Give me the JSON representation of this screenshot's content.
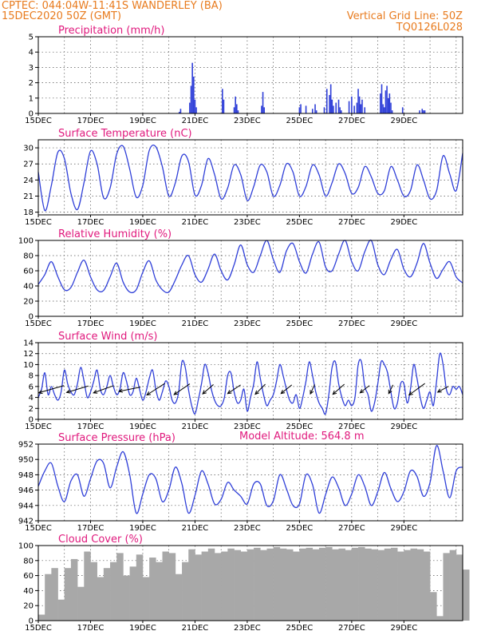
{
  "header": {
    "line1_left": "CPTEC:  044:04W-11:41S  WANDERLEY (BA)",
    "line2_left": "15DEC2020 50Z (GMT)",
    "line1_right": "Vertical Grid Line: 50Z",
    "line2_right": "TQ0126L028"
  },
  "model_altitude": "Model Altitude: 564.8 m",
  "colors": {
    "header": "#e87b1e",
    "title": "#e0197d",
    "series": "#2f3fd8",
    "cloud": "#a8a8a8"
  },
  "chart_data": [
    {
      "type": "bar",
      "title": "Precipitation (mm/h)",
      "x_tick_labels": [
        "15DEC",
        "17DEC",
        "19DEC",
        "21DEC",
        "23DEC",
        "25DEC",
        "27DEC",
        "29DEC"
      ],
      "y_tick_labels": [
        "0",
        "1",
        "2",
        "3",
        "4",
        "5"
      ],
      "ylim": [
        0,
        5
      ],
      "x_unit": "day offset from 15DEC",
      "x": [
        5.4,
        5.45,
        5.8,
        5.85,
        5.9,
        5.95,
        6.0,
        6.05,
        7.05,
        7.1,
        7.5,
        7.55,
        7.6,
        7.65,
        8.55,
        8.6,
        8.65,
        10.0,
        10.05,
        10.25,
        10.5,
        10.6,
        10.65,
        10.95,
        11.05,
        11.15,
        11.2,
        11.25,
        11.3,
        11.4,
        11.5,
        11.55,
        11.6,
        11.9,
        12.0,
        12.1,
        12.2,
        12.25,
        12.3,
        12.35,
        12.4,
        12.5,
        13.1,
        13.15,
        13.2,
        13.25,
        13.3,
        13.35,
        13.4,
        13.45,
        13.5,
        13.55,
        13.95,
        14.6,
        14.7,
        14.75,
        14.8
      ],
      "values": [
        0.1,
        0.3,
        0.7,
        1.8,
        3.3,
        2.4,
        0.9,
        0.4,
        1.6,
        0.9,
        0.4,
        1.1,
        0.6,
        0.2,
        0.5,
        1.4,
        0.4,
        0.4,
        0.6,
        0.5,
        0.3,
        0.6,
        0.2,
        0.4,
        1.6,
        1.2,
        1.9,
        0.9,
        0.5,
        0.7,
        0.9,
        0.4,
        0.2,
        0.8,
        1.1,
        0.5,
        0.7,
        1.6,
        1.1,
        0.6,
        0.9,
        0.4,
        1.3,
        1.9,
        0.6,
        0.4,
        1.5,
        1.8,
        1.0,
        1.3,
        0.7,
        0.2,
        0.4,
        0.2,
        0.3,
        0.2,
        0.2
      ],
      "grid": true
    },
    {
      "type": "line",
      "title": "Surface Temperature (nC)",
      "x_tick_labels": [
        "15DEC",
        "17DEC",
        "19DEC",
        "21DEC",
        "23DEC",
        "25DEC",
        "27DEC",
        "29DEC"
      ],
      "y_tick_labels": [
        "18",
        "21",
        "24",
        "27",
        "30"
      ],
      "ylim": [
        17.5,
        31.5
      ],
      "x_unit": "day offset from 15DEC",
      "x": [
        0.0,
        0.25,
        0.5,
        0.75,
        1.0,
        1.25,
        1.5,
        1.75,
        2.0,
        2.25,
        2.5,
        2.75,
        3.0,
        3.25,
        3.5,
        3.75,
        4.0,
        4.25,
        4.5,
        4.75,
        5.0,
        5.25,
        5.5,
        5.75,
        6.0,
        6.25,
        6.5,
        6.75,
        7.0,
        7.25,
        7.5,
        7.75,
        8.0,
        8.25,
        8.5,
        8.75,
        9.0,
        9.25,
        9.5,
        9.75,
        10.0,
        10.25,
        10.5,
        10.75,
        11.0,
        11.25,
        11.5,
        11.75,
        12.0,
        12.25,
        12.5,
        12.75,
        13.0,
        13.25,
        13.5,
        13.75,
        14.0,
        14.25,
        14.5,
        14.75,
        15.0,
        15.25,
        15.5,
        15.75,
        16.0,
        16.25
      ],
      "y": [
        25.5,
        18.3,
        23.0,
        29.2,
        28.0,
        21.5,
        18.5,
        23.5,
        29.4,
        27.0,
        20.7,
        22.5,
        28.8,
        30.3,
        26.0,
        20.8,
        23.0,
        29.5,
        30.2,
        26.5,
        21.0,
        23.5,
        28.5,
        27.5,
        21.2,
        23.0,
        28.0,
        25.0,
        20.5,
        22.5,
        26.8,
        25.0,
        20.2,
        22.8,
        26.8,
        25.5,
        21.0,
        23.0,
        27.0,
        25.5,
        21.0,
        22.8,
        26.8,
        25.0,
        21.0,
        23.5,
        27.0,
        25.2,
        21.5,
        22.6,
        26.5,
        24.6,
        21.5,
        22.0,
        26.5,
        24.0,
        21.0,
        22.0,
        26.8,
        24.0,
        20.5,
        22.0,
        28.5,
        25.2,
        22.0,
        29.0
      ],
      "grid": true
    },
    {
      "type": "line",
      "title": "Relative Humidity (%)",
      "x_tick_labels": [
        "15DEC",
        "17DEC",
        "19DEC",
        "21DEC",
        "23DEC",
        "25DEC",
        "27DEC",
        "29DEC"
      ],
      "y_tick_labels": [
        "0",
        "20",
        "40",
        "60",
        "80",
        "100"
      ],
      "ylim": [
        0,
        100
      ],
      "x_unit": "day offset from 15DEC",
      "x": [
        0.0,
        0.25,
        0.5,
        0.75,
        1.0,
        1.25,
        1.5,
        1.75,
        2.0,
        2.25,
        2.5,
        2.75,
        3.0,
        3.25,
        3.5,
        3.75,
        4.0,
        4.25,
        4.5,
        4.75,
        5.0,
        5.25,
        5.5,
        5.75,
        6.0,
        6.25,
        6.5,
        6.75,
        7.0,
        7.25,
        7.5,
        7.75,
        8.0,
        8.25,
        8.5,
        8.75,
        9.0,
        9.25,
        9.5,
        9.75,
        10.0,
        10.25,
        10.5,
        10.75,
        11.0,
        11.25,
        11.5,
        11.75,
        12.0,
        12.25,
        12.5,
        12.75,
        13.0,
        13.25,
        13.5,
        13.75,
        14.0,
        14.25,
        14.5,
        14.75,
        15.0,
        15.25,
        15.5,
        15.75,
        16.0,
        16.25
      ],
      "y": [
        42,
        55,
        72,
        52,
        35,
        38,
        58,
        74,
        52,
        35,
        34,
        52,
        70,
        45,
        32,
        35,
        58,
        73,
        48,
        35,
        32,
        48,
        68,
        80,
        55,
        45,
        62,
        82,
        60,
        48,
        68,
        94,
        68,
        58,
        80,
        100,
        75,
        58,
        86,
        96,
        72,
        57,
        82,
        98,
        65,
        60,
        82,
        100,
        72,
        60,
        85,
        100,
        68,
        55,
        75,
        88,
        62,
        52,
        70,
        96,
        70,
        50,
        62,
        72,
        52,
        44
      ]
    },
    {
      "type": "line",
      "title": "Surface Wind (m/s)",
      "x_tick_labels": [
        "15DEC",
        "17DEC",
        "19DEC",
        "21DEC",
        "23DEC",
        "25DEC",
        "27DEC",
        "29DEC"
      ],
      "y_tick_labels": [
        "0",
        "2",
        "4",
        "6",
        "8",
        "10",
        "12",
        "14"
      ],
      "ylim": [
        0,
        14
      ],
      "x_unit": "day offset from 15DEC",
      "x": [
        0.0,
        0.125,
        0.25,
        0.375,
        0.5,
        0.625,
        0.75,
        0.875,
        1.0,
        1.125,
        1.25,
        1.375,
        1.5,
        1.625,
        1.75,
        1.875,
        2.0,
        2.125,
        2.25,
        2.375,
        2.5,
        2.625,
        2.75,
        2.875,
        3.0,
        3.125,
        3.25,
        3.375,
        3.5,
        3.625,
        3.75,
        3.875,
        4.0,
        4.125,
        4.25,
        4.375,
        4.5,
        4.625,
        4.75,
        4.875,
        5.0,
        5.125,
        5.25,
        5.375,
        5.5,
        5.625,
        5.75,
        5.875,
        6.0,
        6.125,
        6.25,
        6.375,
        6.5,
        6.625,
        6.75,
        6.875,
        7.0,
        7.125,
        7.25,
        7.375,
        7.5,
        7.625,
        7.75,
        7.875,
        8.0,
        8.125,
        8.25,
        8.375,
        8.5,
        8.625,
        8.75,
        8.875,
        9.0,
        9.125,
        9.25,
        9.375,
        9.5,
        9.625,
        9.75,
        9.875,
        10.0,
        10.125,
        10.25,
        10.375,
        10.5,
        10.625,
        10.75,
        10.875,
        11.0,
        11.125,
        11.25,
        11.375,
        11.5,
        11.625,
        11.75,
        11.875,
        12.0,
        12.125,
        12.25,
        12.375,
        12.5,
        12.625,
        12.75,
        12.875,
        13.0,
        13.125,
        13.25,
        13.375,
        13.5,
        13.625,
        13.75,
        13.875,
        14.0,
        14.125,
        14.25,
        14.375,
        14.5,
        14.625,
        14.75,
        14.875,
        15.0,
        15.125,
        15.25,
        15.375,
        15.5,
        15.625,
        15.75,
        15.875,
        16.0,
        16.125,
        16.25
      ],
      "y": [
        4.0,
        5.5,
        8.5,
        4.5,
        6.0,
        4.5,
        3.5,
        5.0,
        9.0,
        6.5,
        5.0,
        4.5,
        6.5,
        9.5,
        7.0,
        4.0,
        5.0,
        7.0,
        9.0,
        5.5,
        4.5,
        6.0,
        8.0,
        6.0,
        4.5,
        5.5,
        8.5,
        7.0,
        4.5,
        5.0,
        7.5,
        5.5,
        3.5,
        5.0,
        7.5,
        9.0,
        5.5,
        3.5,
        5.0,
        7.0,
        6.0,
        3.5,
        3.0,
        5.0,
        10.5,
        9.5,
        5.5,
        2.5,
        1.0,
        3.5,
        6.5,
        10.0,
        8.5,
        5.5,
        3.5,
        2.5,
        2.5,
        4.0,
        8.0,
        8.5,
        5.0,
        3.0,
        3.5,
        5.5,
        1.5,
        4.0,
        6.5,
        10.5,
        7.5,
        4.5,
        2.5,
        3.5,
        4.5,
        7.0,
        10.0,
        8.0,
        5.5,
        3.5,
        3.0,
        4.5,
        2.0,
        4.0,
        7.0,
        10.5,
        8.0,
        5.0,
        3.0,
        2.0,
        1.0,
        4.5,
        9.5,
        10.5,
        6.5,
        4.0,
        2.5,
        3.5,
        2.5,
        4.0,
        10.0,
        10.5,
        6.0,
        4.5,
        1.5,
        3.0,
        6.5,
        10.5,
        10.0,
        8.5,
        5.0,
        2.0,
        3.0,
        6.5,
        6.5,
        3.0,
        5.5,
        10.0,
        7.5,
        4.0,
        2.0,
        3.5,
        5.0,
        2.5,
        7.0,
        12.0,
        10.0,
        5.5,
        4.5,
        6.0,
        5.5,
        6.0,
        4.5
      ],
      "wind_barb_days": [
        0.5,
        1.5,
        2.5,
        3.5,
        4.5,
        5.5,
        6.5,
        7.5,
        8.5,
        9.5,
        10.5,
        11.5,
        12.5,
        13.5,
        14.5,
        15.5
      ],
      "wind_barb_u": [
        -3.5,
        -3.0,
        -2.8,
        -3.0,
        -2.5,
        -2.2,
        -1.5,
        -1.8,
        -1.4,
        -1.5,
        -0.6,
        -1.6,
        -1.3,
        -0.6,
        -2.2,
        -1.5
      ],
      "wind_barb_v": [
        -1.0,
        -0.9,
        -1.0,
        -0.6,
        -1.6,
        -1.5,
        -1.3,
        -1.2,
        -1.4,
        -1.2,
        -1.3,
        -1.4,
        -1.0,
        -1.2,
        -1.6,
        -0.8
      ],
      "grid": true
    },
    {
      "type": "line",
      "title": "Surface Pressure (hPa)",
      "x_tick_labels": [
        "15DEC",
        "17DEC",
        "19DEC",
        "21DEC",
        "23DEC",
        "25DEC",
        "27DEC",
        "29DEC"
      ],
      "y_tick_labels": [
        "942",
        "944",
        "946",
        "948",
        "950",
        "952"
      ],
      "ylim": [
        942,
        952
      ],
      "x_unit": "day offset from 15DEC",
      "x": [
        0.0,
        0.25,
        0.5,
        0.75,
        1.0,
        1.25,
        1.5,
        1.75,
        2.0,
        2.25,
        2.5,
        2.75,
        3.0,
        3.25,
        3.5,
        3.75,
        4.0,
        4.25,
        4.5,
        4.75,
        5.0,
        5.25,
        5.5,
        5.75,
        6.0,
        6.25,
        6.5,
        6.75,
        7.0,
        7.25,
        7.5,
        7.75,
        8.0,
        8.25,
        8.5,
        8.75,
        9.0,
        9.25,
        9.5,
        9.75,
        10.0,
        10.25,
        10.5,
        10.75,
        11.0,
        11.25,
        11.5,
        11.75,
        12.0,
        12.25,
        12.5,
        12.75,
        13.0,
        13.25,
        13.5,
        13.75,
        14.0,
        14.25,
        14.5,
        14.75,
        15.0,
        15.25,
        15.5,
        15.75,
        16.0,
        16.25
      ],
      "y": [
        946.5,
        948.5,
        949.5,
        946.5,
        944.5,
        947.2,
        948.0,
        945.2,
        947.5,
        949.8,
        949.5,
        946.3,
        949.0,
        951.0,
        948.0,
        943.0,
        945.5,
        948.0,
        947.5,
        944.5,
        946.0,
        949.0,
        946.8,
        943.0,
        945.3,
        948.5,
        946.8,
        944.2,
        944.8,
        947.0,
        946.0,
        945.2,
        944.2,
        946.8,
        946.8,
        944.0,
        944.6,
        948.0,
        946.2,
        944.0,
        944.2,
        948.0,
        946.7,
        943.0,
        945.4,
        947.7,
        946.3,
        944.0,
        945.5,
        948.0,
        946.5,
        944.0,
        945.8,
        948.3,
        946.2,
        944.5,
        945.8,
        948.5,
        947.8,
        945.2,
        947.0,
        951.8,
        948.5,
        945.0,
        948.5,
        949.0
      ]
    },
    {
      "type": "area",
      "title": "Cloud Cover (%)",
      "x_tick_labels": [
        "15DEC",
        "17DEC",
        "19DEC",
        "21DEC",
        "23DEC",
        "25DEC",
        "27DEC",
        "29DEC"
      ],
      "y_tick_labels": [
        "0",
        "20",
        "40",
        "60",
        "80",
        "100"
      ],
      "ylim": [
        0,
        100
      ],
      "x_unit": "day offset from 15DEC",
      "x": [
        0.0,
        0.25,
        0.5,
        0.75,
        1.0,
        1.25,
        1.5,
        1.75,
        2.0,
        2.25,
        2.5,
        2.75,
        3.0,
        3.25,
        3.5,
        3.75,
        4.0,
        4.25,
        4.5,
        4.75,
        5.0,
        5.25,
        5.5,
        5.75,
        6.0,
        6.25,
        6.5,
        6.75,
        7.0,
        7.25,
        7.5,
        7.75,
        8.0,
        8.25,
        8.5,
        8.75,
        9.0,
        9.25,
        9.5,
        9.75,
        10.0,
        10.25,
        10.5,
        10.75,
        11.0,
        11.25,
        11.5,
        11.75,
        12.0,
        12.25,
        12.5,
        12.75,
        13.0,
        13.25,
        13.5,
        13.75,
        14.0,
        14.25,
        14.5,
        14.75,
        15.0,
        15.25,
        15.5,
        15.75,
        16.0,
        16.25
      ],
      "y": [
        8,
        62,
        70,
        28,
        70,
        82,
        45,
        92,
        78,
        58,
        70,
        78,
        90,
        60,
        72,
        88,
        58,
        84,
        78,
        92,
        90,
        62,
        78,
        95,
        88,
        92,
        96,
        90,
        92,
        96,
        94,
        92,
        95,
        97,
        94,
        96,
        98,
        96,
        95,
        92,
        96,
        97,
        95,
        97,
        98,
        95,
        96,
        94,
        97,
        98,
        96,
        95,
        94,
        96,
        97,
        92,
        94,
        96,
        95,
        92,
        38,
        6,
        90,
        94,
        88,
        68
      ]
    }
  ]
}
